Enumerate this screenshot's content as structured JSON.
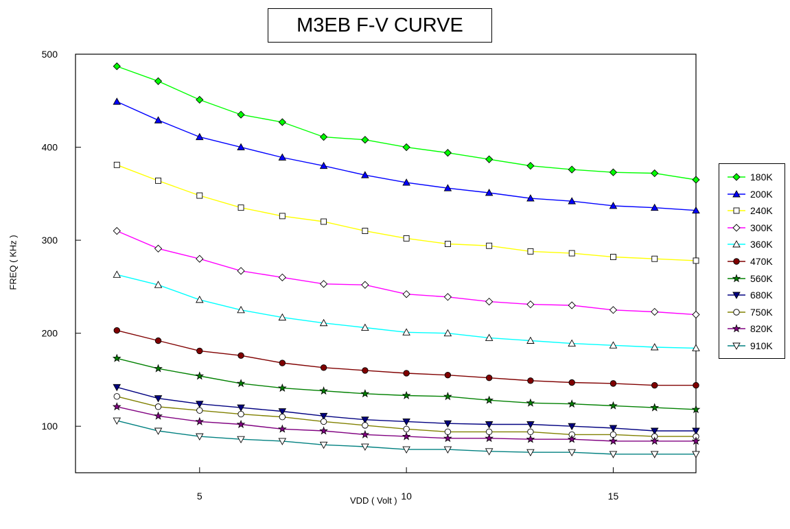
{
  "chart_data": {
    "type": "line",
    "title": "M3EB F-V CURVE",
    "xlabel": "VDD ( Volt )",
    "ylabel": "FREQ ( KHz )",
    "xlim": [
      2,
      17
    ],
    "ylim": [
      50,
      500
    ],
    "xticks": [
      5,
      10,
      15
    ],
    "yticks": [
      100,
      200,
      300,
      400,
      500
    ],
    "grid": false,
    "legend_position": "right",
    "x": [
      3,
      4,
      5,
      6,
      7,
      8,
      9,
      10,
      11,
      12,
      13,
      14,
      15,
      16,
      17
    ],
    "series": [
      {
        "name": "180K",
        "color": "#00ff00",
        "marker": "diamond-filled",
        "values": [
          487,
          471,
          451,
          435,
          427,
          411,
          408,
          400,
          394,
          387,
          380,
          376,
          373,
          372,
          365
        ]
      },
      {
        "name": "200K",
        "color": "#0000ff",
        "marker": "triangle-up-filled",
        "values": [
          449,
          429,
          411,
          400,
          389,
          380,
          370,
          362,
          356,
          351,
          345,
          342,
          337,
          335,
          332
        ]
      },
      {
        "name": "240K",
        "color": "#ffff00",
        "marker": "square-open",
        "values": [
          381,
          364,
          348,
          335,
          326,
          320,
          310,
          302,
          296,
          294,
          288,
          286,
          282,
          280,
          278
        ]
      },
      {
        "name": "300K",
        "color": "#ff00ff",
        "marker": "diamond-open",
        "values": [
          310,
          291,
          280,
          267,
          260,
          253,
          252,
          242,
          239,
          234,
          231,
          230,
          225,
          223,
          220
        ]
      },
      {
        "name": "360K",
        "color": "#00ffff",
        "marker": "triangle-up-open",
        "values": [
          263,
          252,
          236,
          225,
          217,
          211,
          206,
          201,
          200,
          195,
          192,
          189,
          187,
          185,
          184
        ]
      },
      {
        "name": "470K",
        "color": "#800000",
        "marker": "circle-filled",
        "values": [
          203,
          192,
          181,
          176,
          168,
          163,
          160,
          157,
          155,
          152,
          149,
          147,
          146,
          144,
          144
        ]
      },
      {
        "name": "560K",
        "color": "#008000",
        "marker": "star",
        "values": [
          173,
          162,
          154,
          146,
          141,
          138,
          135,
          133,
          132,
          128,
          125,
          124,
          122,
          120,
          118
        ]
      },
      {
        "name": "680K",
        "color": "#000080",
        "marker": "triangle-down-filled",
        "values": [
          142,
          130,
          124,
          120,
          116,
          111,
          107,
          105,
          103,
          102,
          102,
          100,
          98,
          95,
          95
        ]
      },
      {
        "name": "750K",
        "color": "#808000",
        "marker": "circle-open",
        "values": [
          132,
          121,
          117,
          113,
          110,
          105,
          101,
          97,
          94,
          94,
          94,
          91,
          91,
          89,
          89
        ]
      },
      {
        "name": "820K",
        "color": "#800080",
        "marker": "star",
        "values": [
          121,
          111,
          105,
          102,
          97,
          95,
          91,
          89,
          87,
          87,
          86,
          86,
          84,
          84,
          84
        ]
      },
      {
        "name": "910K",
        "color": "#008080",
        "marker": "triangle-down-open",
        "values": [
          106,
          95,
          89,
          86,
          84,
          80,
          78,
          75,
          75,
          73,
          72,
          72,
          70,
          70,
          70
        ]
      }
    ]
  }
}
